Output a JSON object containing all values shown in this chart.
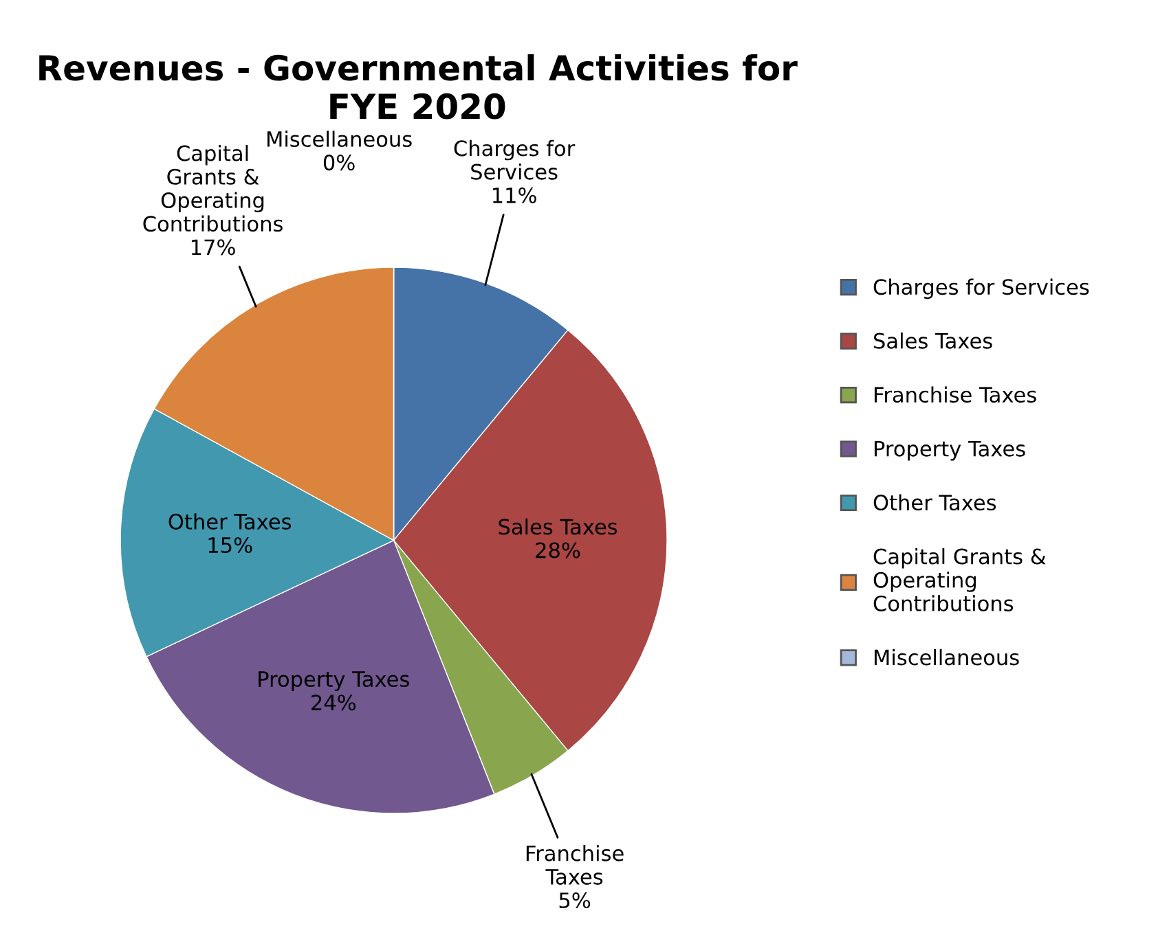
{
  "chart_data": {
    "type": "pie",
    "title": "Revenues - Governmental Activities for FYE 2020",
    "categories": [
      "Charges for Services",
      "Sales Taxes",
      "Franchise Taxes",
      "Property Taxes",
      "Other Taxes",
      "Capital Grants & Operating Contributions",
      "Miscellaneous"
    ],
    "values": [
      11,
      28,
      5,
      24,
      15,
      17,
      0
    ],
    "colors": [
      "#4572a7",
      "#aa4643",
      "#89a54e",
      "#71588f",
      "#4198af",
      "#db843d",
      "#a5b8d9"
    ],
    "value_labels": [
      "11%",
      "28%",
      "5%",
      "24%",
      "15%",
      "17%",
      "0%"
    ],
    "legend": "right"
  }
}
